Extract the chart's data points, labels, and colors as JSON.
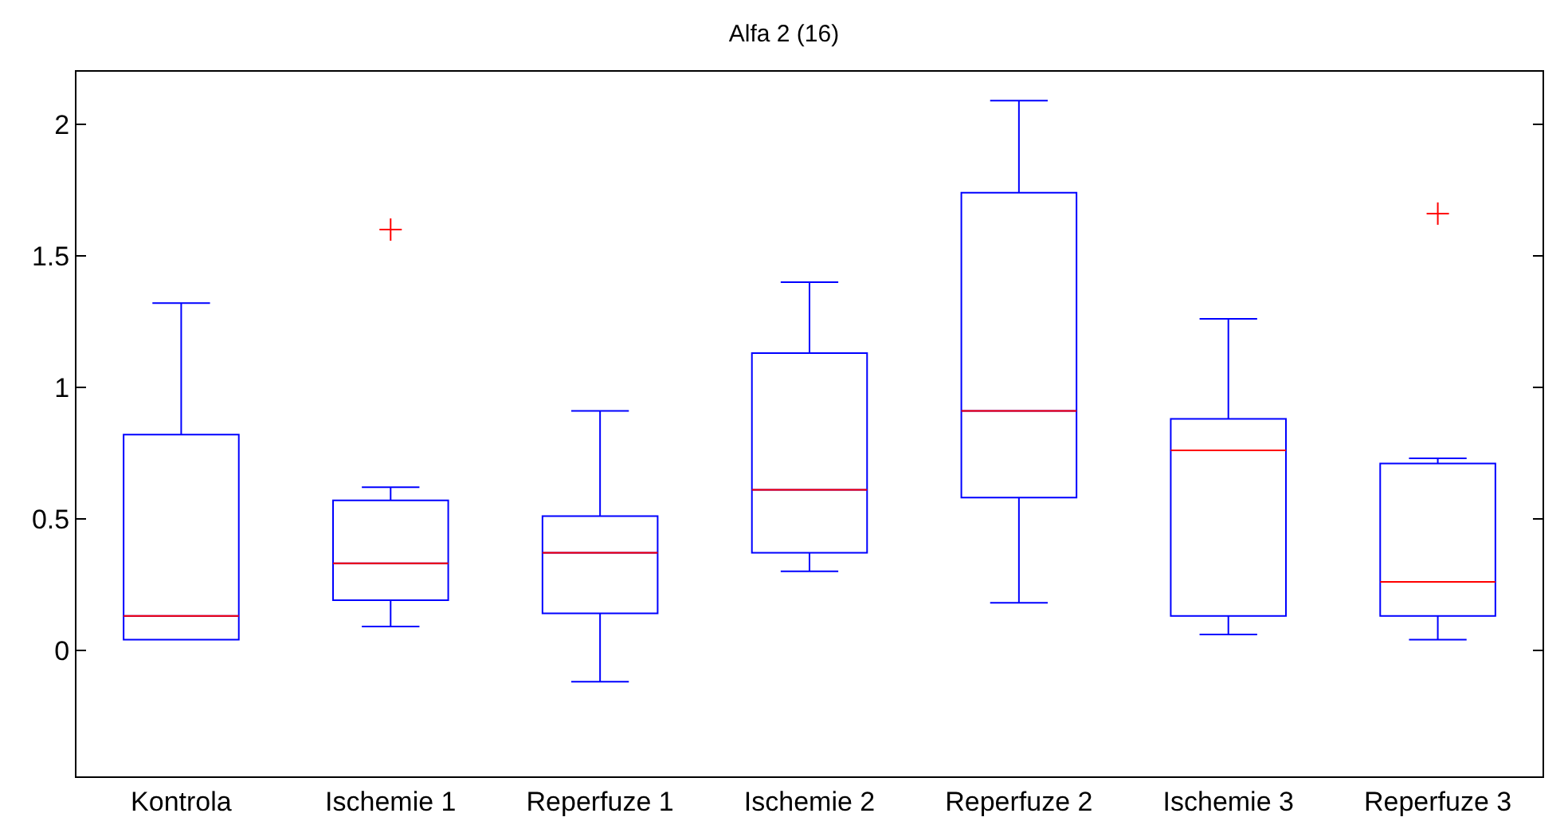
{
  "chart_data": {
    "type": "box",
    "title": "Alfa 2 (16)",
    "categories": [
      "Kontrola",
      "Ischemie 1",
      "Reperfuze 1",
      "Ischemie 2",
      "Reperfuze 2",
      "Ischemie 3",
      "Reperfuze 3"
    ],
    "series": [
      {
        "color": "#0000ff",
        "boxes": [
          {
            "low": 0.04,
            "q1": 0.04,
            "median": 0.13,
            "q3": 0.82,
            "high": 1.32
          },
          {
            "low": 0.09,
            "q1": 0.19,
            "median": 0.33,
            "q3": 0.57,
            "high": 0.62,
            "outliers": [
              1.6
            ]
          },
          {
            "low": -0.12,
            "q1": 0.14,
            "median": 0.37,
            "q3": 0.51,
            "high": 0.91
          },
          {
            "low": 0.3,
            "q1": 0.37,
            "median": 0.61,
            "q3": 1.13,
            "high": 1.4
          },
          {
            "low": 0.18,
            "q1": 0.58,
            "median": 0.91,
            "q3": 1.74,
            "high": 2.09
          },
          {
            "low": 0.06,
            "q1": 0.13,
            "median": 0.76,
            "q3": 0.88,
            "high": 1.26
          },
          {
            "low": 0.04,
            "q1": 0.13,
            "median": 0.26,
            "q3": 0.71,
            "high": 0.73,
            "outliers": [
              1.66
            ]
          }
        ]
      }
    ],
    "ylim": [
      -0.48,
      2.2
    ],
    "yticks": [
      0,
      0.5,
      1,
      1.5,
      2
    ],
    "grid": false
  }
}
